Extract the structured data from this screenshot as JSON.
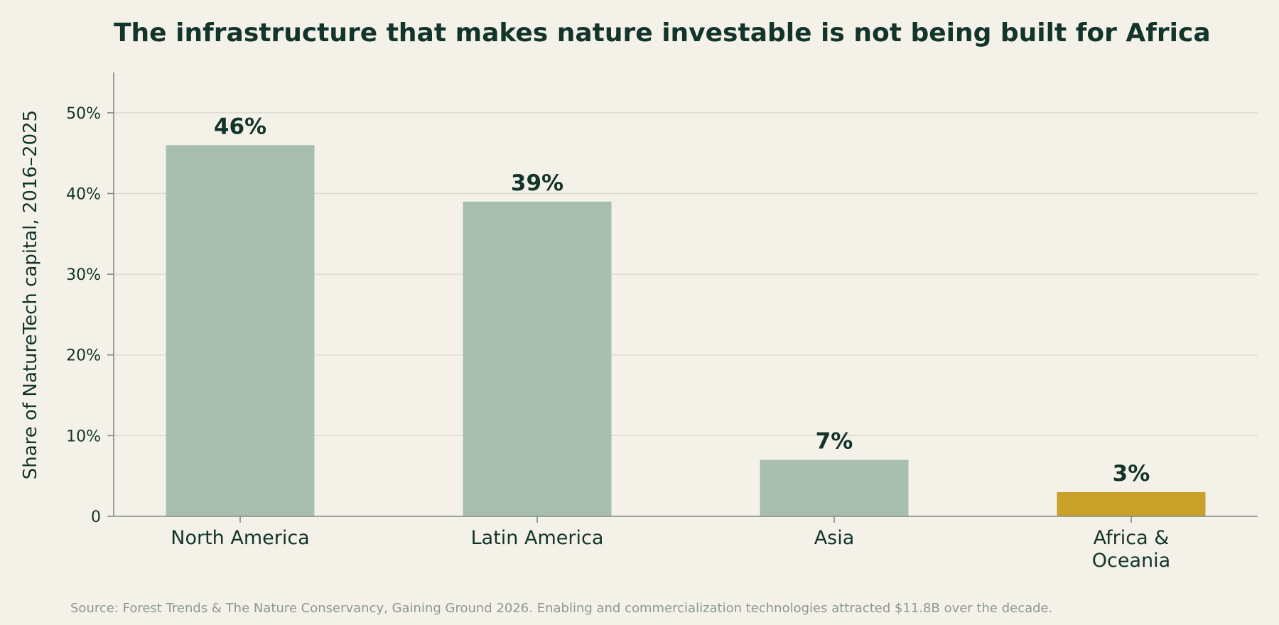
{
  "chart_data": {
    "type": "bar",
    "title": "The infrastructure that makes nature investable is not being built for Africa",
    "ylabel": "Share of NatureTech capital, 2016–2025",
    "xlabel": "",
    "categories": [
      "North America",
      "Latin America",
      "Asia",
      "Africa & Oceania"
    ],
    "category_lines": [
      [
        "North America"
      ],
      [
        "Latin America"
      ],
      [
        "Asia"
      ],
      [
        "Africa &",
        "Oceania"
      ]
    ],
    "values": [
      46,
      39,
      7,
      3
    ],
    "value_labels": [
      "46%",
      "39%",
      "7%",
      "3%"
    ],
    "bar_colors": [
      "#a8bfaf",
      "#a8bfaf",
      "#a8bfaf",
      "#c9a128"
    ],
    "ylim": [
      0,
      55
    ],
    "yticks": [
      0,
      10,
      20,
      30,
      40,
      50
    ],
    "ytick_labels": [
      "0",
      "10%",
      "20%",
      "30%",
      "40%",
      "50%"
    ],
    "grid": true,
    "legend": "none",
    "source": "Source: Forest Trends & The Nature Conservancy, Gaining Ground 2026. Enabling and commercialization technologies attracted $11.8B over the decade."
  }
}
